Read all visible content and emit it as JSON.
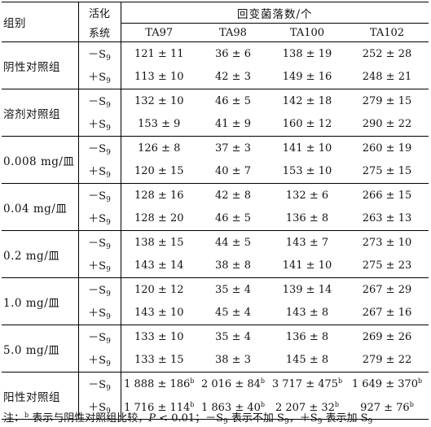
{
  "header": {
    "group": "组别",
    "activation_line1": "活化",
    "activation_line2": "系统",
    "revertants": "回变菌落数/个",
    "strains": [
      "TA97",
      "TA98",
      "TA100",
      "TA102"
    ]
  },
  "minus_s9": "－S",
  "plus_s9": "＋S",
  "s9_sub": "9",
  "groups": [
    {
      "label": "阴性对照组",
      "minus": [
        "121 ± 11",
        "36 ± 6",
        "138 ± 19",
        "252 ± 28"
      ],
      "plus": [
        "113 ± 10",
        "42 ± 3",
        "149 ± 16",
        "248 ± 21"
      ]
    },
    {
      "label": "溶剂对照组",
      "minus": [
        "132 ± 10",
        "46 ± 5",
        "142 ± 18",
        "279 ± 15"
      ],
      "plus": [
        "153 ± 9",
        "41 ± 9",
        "160 ± 12",
        "290 ± 22"
      ]
    },
    {
      "label": "0.008 mg/皿",
      "minus": [
        "126 ± 8",
        "37 ± 3",
        "141 ± 10",
        "260 ± 19"
      ],
      "plus": [
        "120 ± 15",
        "40 ± 7",
        "153 ± 10",
        "275 ± 15"
      ]
    },
    {
      "label": "0.04 mg/皿",
      "minus": [
        "128 ± 16",
        "42 ± 8",
        "132 ± 6",
        "266 ± 15"
      ],
      "plus": [
        "128 ± 20",
        "46 ± 5",
        "136 ± 8",
        "263 ± 13"
      ]
    },
    {
      "label": "0.2 mg/皿",
      "minus": [
        "138 ± 15",
        "44 ± 5",
        "143 ± 7",
        "273 ± 10"
      ],
      "plus": [
        "143 ± 14",
        "38 ± 8",
        "141 ± 10",
        "275 ± 23"
      ]
    },
    {
      "label": "1.0 mg/皿",
      "minus": [
        "120 ± 12",
        "35 ± 4",
        "139 ± 14",
        "267 ± 29"
      ],
      "plus": [
        "143 ± 10",
        "45 ± 4",
        "143 ± 8",
        "267 ± 16"
      ]
    },
    {
      "label": "5.0 mg/皿",
      "minus": [
        "133 ± 10",
        "35 ± 4",
        "136 ± 8",
        "269 ± 26"
      ],
      "plus": [
        "133 ± 15",
        "38 ± 3",
        "145 ± 8",
        "279 ± 22"
      ]
    },
    {
      "label": "阳性对照组",
      "minus": [
        "1 888 ± 186",
        "2 016 ± 84",
        "3 717 ± 475",
        "1 649 ± 370"
      ],
      "plus": [
        "1 716 ± 114",
        "1 863 ± 40",
        "2 207 ± 32",
        "927 ± 76"
      ],
      "sig_mark": "b"
    }
  ],
  "note": {
    "prefix": "注：",
    "mark": "b",
    "text1": " 表示与阴性对照组比较，",
    "p_symbol": "P",
    "text2": " < 0.01；－S",
    "sub1": "9",
    "text3": " 表示不加 S",
    "sub2": "9",
    "text4": "，＋S",
    "sub3": "9",
    "text5": " 表示加 S",
    "sub4": "9"
  }
}
